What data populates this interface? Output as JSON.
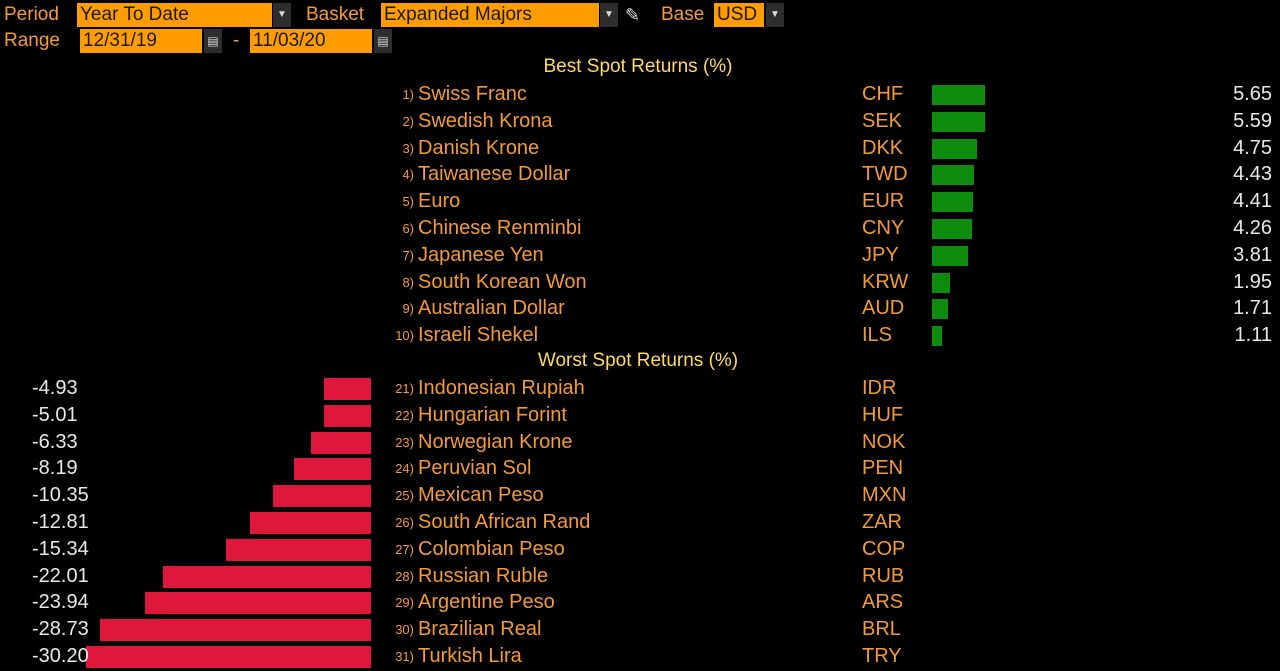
{
  "header": {
    "period_label": "Period",
    "period_value": "Year To Date",
    "basket_label": "Basket",
    "basket_value": "Expanded Majors",
    "base_label": "Base",
    "base_value": "USD",
    "range_label": "Range",
    "range_start": "12/31/19",
    "range_sep": "-",
    "range_end": "11/03/20"
  },
  "best": {
    "title": "Best Spot Returns (%)",
    "rows": [
      {
        "rank": "1)",
        "name": "Swiss Franc",
        "code": "CHF",
        "value": "5.65",
        "num": 5.65
      },
      {
        "rank": "2)",
        "name": "Swedish Krona",
        "code": "SEK",
        "value": "5.59",
        "num": 5.59
      },
      {
        "rank": "3)",
        "name": "Danish Krone",
        "code": "DKK",
        "value": "4.75",
        "num": 4.75
      },
      {
        "rank": "4)",
        "name": "Taiwanese Dollar",
        "code": "TWD",
        "value": "4.43",
        "num": 4.43
      },
      {
        "rank": "5)",
        "name": "Euro",
        "code": "EUR",
        "value": "4.41",
        "num": 4.41
      },
      {
        "rank": "6)",
        "name": "Chinese Renminbi",
        "code": "CNY",
        "value": "4.26",
        "num": 4.26
      },
      {
        "rank": "7)",
        "name": "Japanese Yen",
        "code": "JPY",
        "value": "3.81",
        "num": 3.81
      },
      {
        "rank": "8)",
        "name": "South Korean Won",
        "code": "KRW",
        "value": "1.95",
        "num": 1.95
      },
      {
        "rank": "9)",
        "name": "Australian Dollar",
        "code": "AUD",
        "value": "1.71",
        "num": 1.71
      },
      {
        "rank": "10)",
        "name": "Israeli Shekel",
        "code": "ILS",
        "value": "1.11",
        "num": 1.11
      }
    ]
  },
  "worst": {
    "title": "Worst Spot Returns (%)",
    "rows": [
      {
        "rank": "21)",
        "name": "Indonesian Rupiah",
        "code": "IDR",
        "value": "-4.93",
        "num": -4.93
      },
      {
        "rank": "22)",
        "name": "Hungarian Forint",
        "code": "HUF",
        "value": "-5.01",
        "num": -5.01
      },
      {
        "rank": "23)",
        "name": "Norwegian Krone",
        "code": "NOK",
        "value": "-6.33",
        "num": -6.33
      },
      {
        "rank": "24)",
        "name": "Peruvian Sol",
        "code": "PEN",
        "value": "-8.19",
        "num": -8.19
      },
      {
        "rank": "25)",
        "name": "Mexican Peso",
        "code": "MXN",
        "value": "-10.35",
        "num": -10.35
      },
      {
        "rank": "26)",
        "name": "South African Rand",
        "code": "ZAR",
        "value": "-12.81",
        "num": -12.81
      },
      {
        "rank": "27)",
        "name": "Colombian Peso",
        "code": "COP",
        "value": "-15.34",
        "num": -15.34
      },
      {
        "rank": "28)",
        "name": "Russian Ruble",
        "code": "RUB",
        "value": "-22.01",
        "num": -22.01
      },
      {
        "rank": "29)",
        "name": "Argentine Peso",
        "code": "ARS",
        "value": "-23.94",
        "num": -23.94
      },
      {
        "rank": "30)",
        "name": "Brazilian Real",
        "code": "BRL",
        "value": "-28.73",
        "num": -28.73
      },
      {
        "rank": "31)",
        "name": "Turkish Lira",
        "code": "TRY",
        "value": "-30.20",
        "num": -30.2
      }
    ]
  },
  "colors": {
    "positive_bar": "#0e8c0e",
    "negative_bar": "#e0173c",
    "field_bg": "#ff9d00",
    "label": "#f39a3a",
    "title": "#ffd86b"
  },
  "icons": {
    "dropdown": "chevron-down-icon",
    "calendar": "calendar-icon",
    "edit": "pencil-icon"
  }
}
